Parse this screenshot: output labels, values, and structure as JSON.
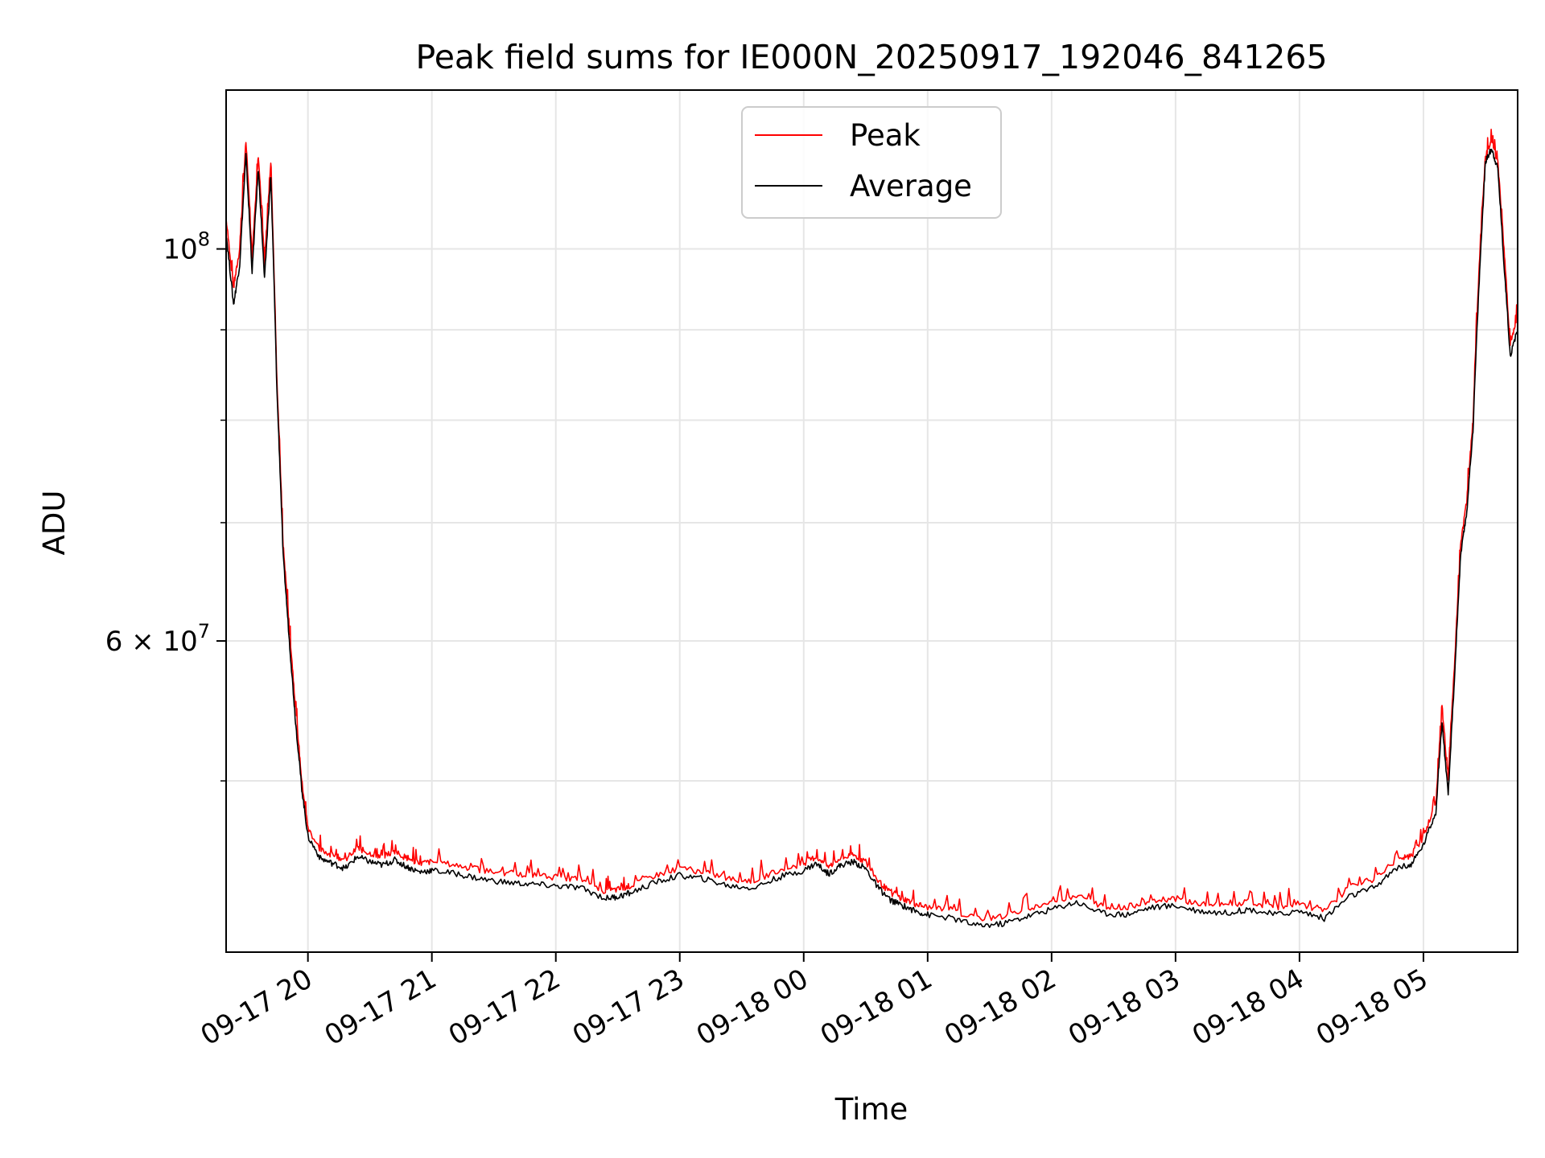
{
  "chart_data": {
    "type": "line",
    "title": "Peak field sums for IE000N_20250917_192046_841265",
    "xlabel": "Time",
    "ylabel": "ADU",
    "yscale": "log",
    "ylim": [
      40000000,
      123000000
    ],
    "xlim_hours": [
      -0.66,
      9.76
    ],
    "grid": true,
    "legend_position": "upper-center",
    "x_tick_labels": [
      "09-17 20",
      "09-17 21",
      "09-17 22",
      "09-17 23",
      "09-18 00",
      "09-18 01",
      "09-18 02",
      "09-18 03",
      "09-18 04",
      "09-18 05"
    ],
    "x_tick_hours": [
      0,
      1,
      2,
      3,
      4,
      5,
      6,
      7,
      8,
      9
    ],
    "y_major_ticks": [
      {
        "value": 100000000,
        "base": "10",
        "exp": "8",
        "mantissa": ""
      },
      {
        "value": 60000000,
        "base": "10",
        "exp": "7",
        "mantissa": "6"
      }
    ],
    "y_minor_ticks": [
      50000000,
      70000000,
      80000000,
      90000000
    ],
    "series": [
      {
        "name": "Peak",
        "color": "#ff0000",
        "x_hours": [
          -0.66,
          -0.6,
          -0.55,
          -0.5,
          -0.45,
          -0.4,
          -0.35,
          -0.3,
          -0.25,
          -0.2,
          -0.15,
          -0.1,
          -0.05,
          0.0,
          0.1,
          0.2,
          0.3,
          0.4,
          0.5,
          0.6,
          0.7,
          0.8,
          0.9,
          1.0,
          1.2,
          1.4,
          1.6,
          1.8,
          2.0,
          2.2,
          2.4,
          2.5,
          2.6,
          2.8,
          3.0,
          3.2,
          3.4,
          3.6,
          3.8,
          4.0,
          4.1,
          4.2,
          4.3,
          4.4,
          4.5,
          4.6,
          4.7,
          4.8,
          4.9,
          5.0,
          5.2,
          5.4,
          5.6,
          5.8,
          6.0,
          6.2,
          6.4,
          6.6,
          6.8,
          7.0,
          7.2,
          7.4,
          7.6,
          7.8,
          8.0,
          8.2,
          8.4,
          8.6,
          8.8,
          8.9,
          9.0,
          9.1,
          9.15,
          9.2,
          9.25,
          9.3,
          9.35,
          9.4,
          9.45,
          9.5,
          9.55,
          9.6,
          9.65,
          9.7,
          9.76
        ],
        "values": [
          104,
          95,
          100,
          115,
          99,
          113,
          98,
          112,
          84,
          68,
          61,
          55,
          50,
          47,
          45.7,
          45.4,
          45.1,
          45.8,
          45.5,
          45.3,
          45.6,
          45.2,
          44.9,
          45.0,
          44.8,
          44.5,
          44.3,
          44.2,
          44.1,
          44.0,
          43.3,
          43.4,
          43.6,
          44.2,
          44.6,
          44.4,
          44.0,
          43.9,
          44.5,
          44.9,
          45.3,
          44.7,
          45.2,
          45.4,
          45.0,
          43.9,
          43.2,
          42.9,
          42.6,
          42.4,
          42.2,
          41.8,
          41.9,
          42.3,
          42.7,
          43.1,
          42.5,
          42.4,
          42.8,
          42.9,
          42.6,
          42.5,
          42.7,
          42.4,
          42.6,
          42.2,
          43.5,
          44.0,
          45.2,
          45.3,
          46.5,
          48.5,
          55,
          50,
          58,
          68,
          72,
          80,
          98,
          113,
          115,
          112,
          100,
          88,
          92
        ]
      },
      {
        "name": "Average",
        "color": "#000000",
        "x_hours": [
          -0.66,
          -0.6,
          -0.55,
          -0.5,
          -0.45,
          -0.4,
          -0.35,
          -0.3,
          -0.25,
          -0.2,
          -0.15,
          -0.1,
          -0.05,
          0.0,
          0.1,
          0.2,
          0.3,
          0.4,
          0.5,
          0.6,
          0.7,
          0.8,
          0.9,
          1.0,
          1.2,
          1.4,
          1.6,
          1.8,
          2.0,
          2.2,
          2.4,
          2.5,
          2.6,
          2.8,
          3.0,
          3.2,
          3.4,
          3.6,
          3.8,
          4.0,
          4.1,
          4.2,
          4.3,
          4.4,
          4.5,
          4.6,
          4.7,
          4.8,
          4.9,
          5.0,
          5.2,
          5.4,
          5.6,
          5.8,
          6.0,
          6.2,
          6.4,
          6.6,
          6.8,
          7.0,
          7.2,
          7.4,
          7.6,
          7.8,
          8.0,
          8.2,
          8.4,
          8.6,
          8.8,
          8.9,
          9.0,
          9.1,
          9.15,
          9.2,
          9.25,
          9.3,
          9.35,
          9.4,
          9.45,
          9.5,
          9.55,
          9.6,
          9.65,
          9.7,
          9.76
        ],
        "values": [
          102,
          93,
          98,
          113,
          97,
          111,
          96,
          110,
          83,
          67,
          60,
          54,
          49.5,
          46.5,
          45.2,
          44.9,
          44.6,
          45.3,
          45.0,
          44.8,
          45.1,
          44.7,
          44.4,
          44.5,
          44.3,
          44.0,
          43.8,
          43.7,
          43.6,
          43.5,
          42.9,
          43.0,
          43.2,
          43.8,
          44.2,
          44.0,
          43.6,
          43.5,
          44.1,
          44.5,
          44.9,
          44.3,
          44.8,
          45.0,
          44.6,
          43.5,
          42.8,
          42.5,
          42.2,
          42.0,
          41.8,
          41.4,
          41.5,
          41.9,
          42.3,
          42.7,
          42.1,
          42.0,
          42.4,
          42.5,
          42.2,
          42.1,
          42.3,
          42.0,
          42.2,
          41.8,
          43.0,
          43.5,
          44.7,
          44.8,
          46.0,
          48.0,
          54,
          49,
          57,
          67,
          71,
          79,
          96,
          112,
          114,
          111,
          98,
          87,
          90
        ]
      }
    ],
    "value_unit_multiplier": 1000000
  }
}
